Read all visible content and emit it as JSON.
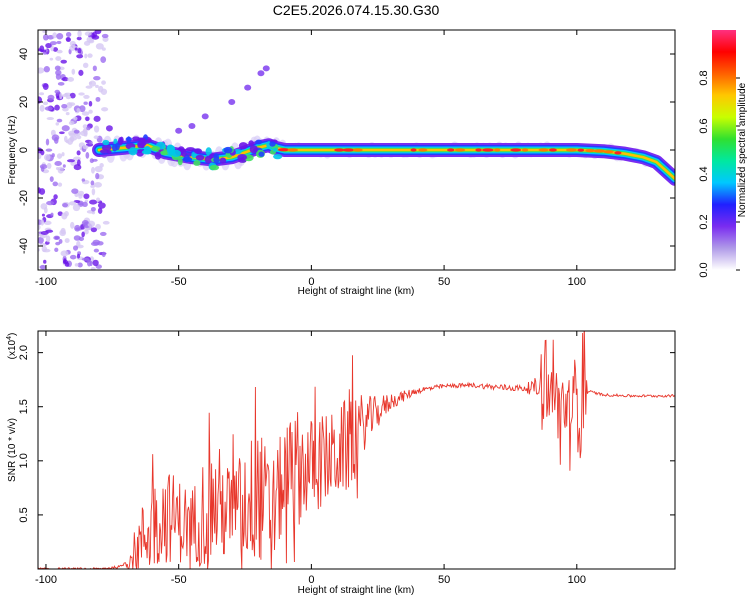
{
  "figure_title": "C2E5.2026.074.15.30.G30",
  "chart_data": [
    {
      "type": "heatmap",
      "title": "C2E5.2026.074.15.30.G30",
      "xlabel": "Height of straight line (km)",
      "ylabel": "Frequency (Hz)",
      "xlim": [
        -103,
        137
      ],
      "ylim": [
        -50,
        50
      ],
      "xticks": [
        -100,
        -50,
        0,
        50,
        100
      ],
      "yticks": [
        -40,
        -20,
        0,
        20,
        40
      ],
      "colorbar": {
        "label": "Normalized spectral amplitude",
        "range": [
          0,
          1
        ],
        "ticks": [
          0.0,
          0.2,
          0.4,
          0.6,
          0.8
        ],
        "colors": [
          "#ffffff",
          "#b09ae8",
          "#7a2cf0",
          "#2020ff",
          "#00c8ff",
          "#00e8a0",
          "#30e030",
          "#c8ff00",
          "#ffc800",
          "#ff6000",
          "#ff0000",
          "#ff3080"
        ]
      },
      "ridge": {
        "x": [
          -80,
          -70,
          -62,
          -55,
          -45,
          -37,
          -30,
          -25,
          -20,
          -16,
          -14,
          -10,
          0,
          20,
          50,
          80,
          100,
          110,
          118,
          125,
          130,
          133,
          137
        ],
        "y": [
          0,
          1,
          2,
          -1,
          -3,
          -4,
          -3,
          -1,
          1,
          2,
          1,
          0,
          0,
          0,
          0,
          0,
          0,
          -0.5,
          -1.5,
          -3,
          -5,
          -8,
          -12
        ]
      },
      "harmonic_blobs": {
        "x": [
          -50,
          -45,
          -40,
          -30,
          -24,
          -19,
          -17
        ],
        "y": [
          8,
          10,
          14,
          20,
          26,
          32,
          34
        ]
      },
      "noise_region_x": [
        -103,
        -75
      ]
    },
    {
      "type": "line",
      "xlabel": "Height of straight line (km)",
      "ylabel": "SNR (10 * v/v)",
      "y_multiplier": "(x10",
      "y_multiplier_exp": "4",
      "y_multiplier_close": ")",
      "xlim": [
        -103,
        137
      ],
      "ylim": [
        0,
        2.2
      ],
      "xticks": [
        -100,
        -50,
        0,
        50,
        100
      ],
      "yticks": [
        0.5,
        1.0,
        1.5,
        2.0
      ],
      "series": [
        {
          "name": "SNR",
          "color": "#e8372c",
          "x": [
            -103,
            -80,
            -72,
            -68,
            -62,
            -55,
            -50,
            -45,
            -40,
            -35,
            -30,
            -25,
            -20,
            -15,
            -10,
            -5,
            0,
            5,
            10,
            15,
            20,
            25,
            30,
            35,
            40,
            50,
            60,
            70,
            80,
            85,
            90,
            95,
            100,
            103,
            110,
            120,
            137
          ],
          "y": [
            0,
            0,
            0.02,
            0.1,
            0.35,
            0.5,
            0.45,
            0.4,
            0.55,
            0.6,
            0.5,
            0.6,
            0.7,
            0.5,
            0.85,
            0.95,
            0.95,
            1.0,
            1.05,
            1.2,
            1.35,
            1.45,
            1.55,
            1.6,
            1.65,
            1.69,
            1.7,
            1.68,
            1.67,
            1.68,
            1.6,
            1.5,
            1.55,
            1.65,
            1.61,
            1.6,
            1.6
          ]
        }
      ],
      "noise_envelope": {
        "x": [
          -70,
          -62,
          -55,
          -50,
          -45,
          -40,
          -35,
          -30,
          -25,
          -20,
          -15,
          -10,
          -5,
          0,
          5,
          10,
          15,
          20,
          25,
          30,
          35,
          40,
          50,
          60,
          70,
          80,
          85,
          88,
          92,
          96,
          100,
          102,
          104
        ],
        "amp": [
          0.05,
          0.4,
          0.45,
          0.4,
          0.35,
          0.55,
          0.55,
          0.45,
          0.55,
          0.65,
          0.5,
          0.5,
          0.55,
          0.45,
          0.45,
          0.4,
          0.5,
          0.25,
          0.15,
          0.08,
          0.05,
          0.03,
          0.02,
          0.02,
          0.03,
          0.03,
          0.1,
          0.3,
          0.35,
          0.35,
          0.45,
          0.65,
          0.06
        ]
      }
    }
  ]
}
